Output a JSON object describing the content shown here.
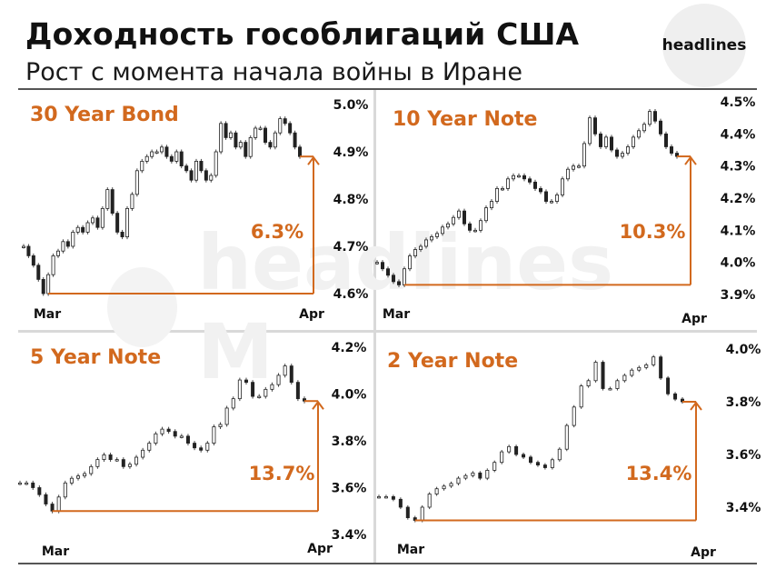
{
  "header": {
    "title": "Доходность гособлигаций США",
    "subtitle": "Рост с момента начала войны в Иране",
    "logo_text": "headlines"
  },
  "watermark_text": "headlines M",
  "colors": {
    "accent": "#d2691e",
    "price": "#222222",
    "rule": "#555555"
  },
  "chart_data": [
    {
      "type": "line",
      "title": "30 Year Bond",
      "xlabels": [
        "Mar",
        "Apr"
      ],
      "yticks": [
        "4.6%",
        "4.7%",
        "4.8%",
        "4.9%",
        "5.0%"
      ],
      "ylim": [
        4.6,
        5.0
      ],
      "annotation": "6.3%",
      "start_value": 4.6,
      "end_value": 4.89,
      "series": [
        {
          "values": [
            4.7,
            4.68,
            4.66,
            4.63,
            4.6,
            4.64,
            4.68,
            4.69,
            4.71,
            4.7,
            4.73,
            4.74,
            4.73,
            4.75,
            4.76,
            4.74,
            4.78,
            4.82,
            4.77,
            4.73,
            4.72,
            4.78,
            4.81,
            4.86,
            4.88,
            4.89,
            4.9,
            4.9,
            4.91,
            4.89,
            4.88,
            4.9,
            4.87,
            4.86,
            4.84,
            4.88,
            4.86,
            4.84,
            4.85,
            4.9,
            4.96,
            4.93,
            4.94,
            4.91,
            4.92,
            4.89,
            4.93,
            4.95,
            4.95,
            4.92,
            4.91,
            4.94,
            4.97,
            4.96,
            4.94,
            4.91,
            4.89
          ]
        }
      ]
    },
    {
      "type": "line",
      "title": "10 Year Note",
      "xlabels": [
        "Mar",
        "Apr"
      ],
      "yticks": [
        "3.9%",
        "4.0%",
        "4.1%",
        "4.2%",
        "4.3%",
        "4.4%",
        "4.5%"
      ],
      "ylim": [
        3.9,
        4.5
      ],
      "annotation": "10.3%",
      "start_value": 3.93,
      "end_value": 4.33,
      "series": [
        {
          "values": [
            4.0,
            3.98,
            3.96,
            3.94,
            3.93,
            3.98,
            4.02,
            4.04,
            4.05,
            4.07,
            4.08,
            4.09,
            4.11,
            4.12,
            4.14,
            4.16,
            4.12,
            4.1,
            4.1,
            4.13,
            4.17,
            4.19,
            4.23,
            4.23,
            4.26,
            4.27,
            4.27,
            4.26,
            4.25,
            4.23,
            4.22,
            4.19,
            4.19,
            4.21,
            4.26,
            4.29,
            4.3,
            4.3,
            4.37,
            4.45,
            4.4,
            4.36,
            4.39,
            4.35,
            4.33,
            4.34,
            4.36,
            4.39,
            4.41,
            4.43,
            4.47,
            4.44,
            4.4,
            4.36,
            4.34,
            4.33
          ]
        }
      ]
    },
    {
      "type": "line",
      "title": "5 Year Note",
      "xlabels": [
        "Mar",
        "Apr"
      ],
      "yticks": [
        "3.4%",
        "3.6%",
        "3.8%",
        "4.0%",
        "4.2%"
      ],
      "ylim": [
        3.4,
        4.2
      ],
      "annotation": "13.7%",
      "start_value": 3.5,
      "end_value": 3.97,
      "series": [
        {
          "values": [
            3.62,
            3.62,
            3.6,
            3.57,
            3.53,
            3.5,
            3.56,
            3.62,
            3.64,
            3.65,
            3.66,
            3.69,
            3.72,
            3.74,
            3.72,
            3.72,
            3.69,
            3.7,
            3.73,
            3.76,
            3.79,
            3.83,
            3.85,
            3.84,
            3.82,
            3.82,
            3.79,
            3.77,
            3.76,
            3.79,
            3.86,
            3.87,
            3.94,
            3.98,
            4.06,
            4.05,
            3.99,
            3.99,
            4.02,
            4.04,
            4.08,
            4.12,
            4.05,
            3.98,
            3.97
          ]
        }
      ]
    },
    {
      "type": "line",
      "title": "2 Year Note",
      "xlabels": [
        "Mar",
        "Apr"
      ],
      "yticks": [
        "3.4%",
        "3.6%",
        "3.8%",
        "4.0%"
      ],
      "ylim": [
        3.4,
        4.0
      ],
      "annotation": "13.4%",
      "start_value": 3.35,
      "end_value": 3.8,
      "series": [
        {
          "values": [
            3.44,
            3.44,
            3.43,
            3.4,
            3.36,
            3.35,
            3.4,
            3.45,
            3.47,
            3.48,
            3.49,
            3.51,
            3.52,
            3.53,
            3.51,
            3.54,
            3.57,
            3.61,
            3.63,
            3.6,
            3.59,
            3.57,
            3.56,
            3.55,
            3.58,
            3.62,
            3.71,
            3.78,
            3.86,
            3.88,
            3.95,
            3.85,
            3.85,
            3.88,
            3.9,
            3.92,
            3.93,
            3.94,
            3.97,
            3.89,
            3.83,
            3.81,
            3.8
          ]
        }
      ]
    }
  ]
}
